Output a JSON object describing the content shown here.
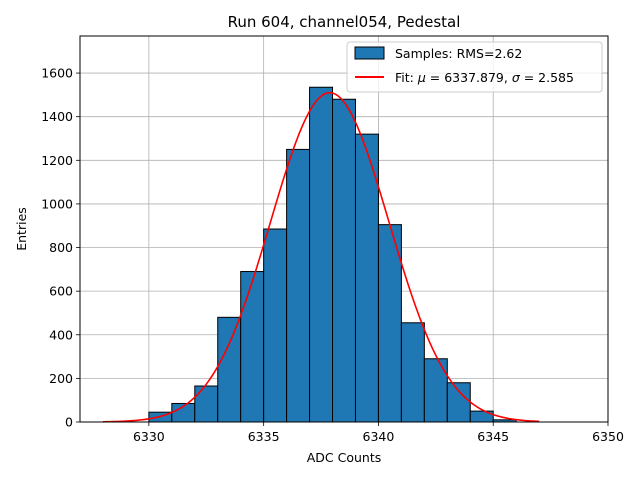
{
  "chart_data": {
    "type": "bar",
    "title": "Run 604, channel054, Pedestal",
    "xlabel": "ADC Counts",
    "ylabel": "Entries",
    "xlim": [
      6327,
      6350
    ],
    "ylim": [
      0,
      1770
    ],
    "xticks": [
      6330,
      6335,
      6340,
      6345,
      6350
    ],
    "yticks": [
      0,
      200,
      400,
      600,
      800,
      1000,
      1200,
      1400,
      1600
    ],
    "grid": true,
    "legend_position": "top-right",
    "histogram": {
      "name": "Samples: RMS=2.62",
      "color": "#1f77b4",
      "edge_color": "#000000",
      "bins": [
        {
          "x0": 6330,
          "x1": 6331,
          "count": 45
        },
        {
          "x0": 6331,
          "x1": 6332,
          "count": 85
        },
        {
          "x0": 6332,
          "x1": 6333,
          "count": 165
        },
        {
          "x0": 6333,
          "x1": 6334,
          "count": 480
        },
        {
          "x0": 6334,
          "x1": 6335,
          "count": 690
        },
        {
          "x0": 6335,
          "x1": 6336,
          "count": 885
        },
        {
          "x0": 6336,
          "x1": 6337,
          "count": 1250
        },
        {
          "x0": 6337,
          "x1": 6338,
          "count": 1535
        },
        {
          "x0": 6338,
          "x1": 6339,
          "count": 1480
        },
        {
          "x0": 6339,
          "x1": 6340,
          "count": 1320
        },
        {
          "x0": 6340,
          "x1": 6341,
          "count": 905
        },
        {
          "x0": 6341,
          "x1": 6342,
          "count": 455
        },
        {
          "x0": 6342,
          "x1": 6343,
          "count": 290
        },
        {
          "x0": 6343,
          "x1": 6344,
          "count": 180
        },
        {
          "x0": 6344,
          "x1": 6345,
          "count": 50
        },
        {
          "x0": 6345,
          "x1": 6346,
          "count": 10
        }
      ]
    },
    "fit": {
      "name_prefix": "Fit: ",
      "mu_symbol": "μ",
      "sigma_symbol": "σ",
      "mu_text": " = 6337.879, ",
      "sigma_text": " = 2.585",
      "color": "#ff0000",
      "mu": 6337.879,
      "sigma": 2.585,
      "amplitude": 1510,
      "x_range": [
        6328,
        6347
      ]
    }
  }
}
